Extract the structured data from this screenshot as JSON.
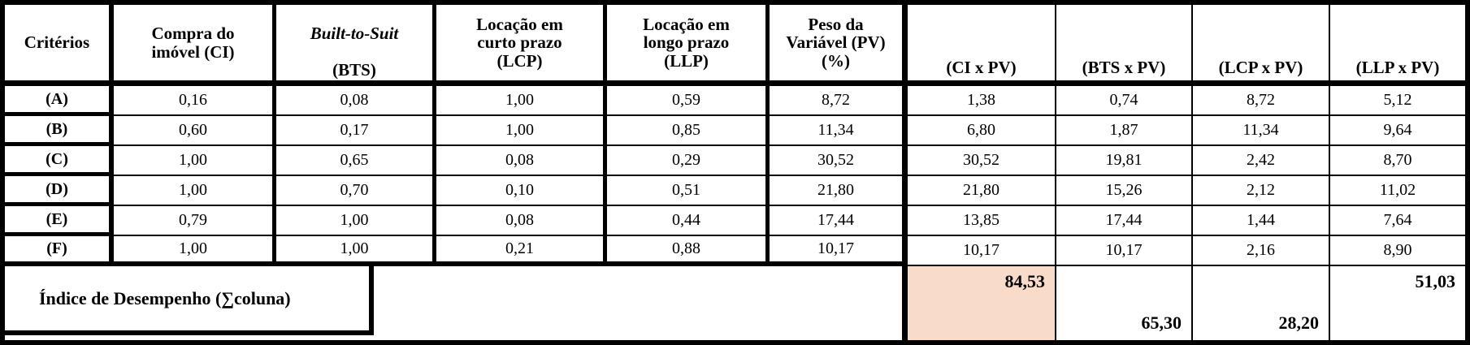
{
  "colors": {
    "highlight": "#F8DBC8",
    "border": "#000000",
    "background": "#FFFFFF"
  },
  "header_display": {
    "criterios": "Critérios",
    "ci": "Compra do\nimóvel (CI)",
    "bts_italic": "Built-to-Suit",
    "bts_rest": "(BTS)",
    "lcp": "Locação em\ncurto prazo\n(LCP)",
    "llp": "Locação em\nlongo prazo\n(LLP)",
    "pv": "Peso da\nVariável (PV)\n(%)",
    "ci_pv": "(CI x PV)",
    "bts_pv": "(BTS x PV)",
    "lcp_pv": "(LCP x PV)",
    "llp_pv": "(LLP x PV)"
  },
  "chart_data": {
    "type": "table",
    "columns": [
      "Critérios",
      "Compra do imóvel (CI)",
      "Built-to-Suit (BTS)",
      "Locação em curto prazo (LCP)",
      "Locação em longo prazo (LLP)",
      "Peso da Variável (PV) (%)",
      "(CI x PV)",
      "(BTS x PV)",
      "(LCP x PV)",
      "(LLP x PV)"
    ],
    "rows": [
      [
        "(A)",
        "0,16",
        "0,08",
        "1,00",
        "0,59",
        "8,72",
        "1,38",
        "0,74",
        "8,72",
        "5,12"
      ],
      [
        "(B)",
        "0,60",
        "0,17",
        "1,00",
        "0,85",
        "11,34",
        "6,80",
        "1,87",
        "11,34",
        "9,64"
      ],
      [
        "(C)",
        "1,00",
        "0,65",
        "0,08",
        "0,29",
        "30,52",
        "30,52",
        "19,81",
        "2,42",
        "8,70"
      ],
      [
        "(D)",
        "1,00",
        "0,70",
        "0,10",
        "0,51",
        "21,80",
        "21,80",
        "15,26",
        "2,12",
        "11,02"
      ],
      [
        "(E)",
        "0,79",
        "1,00",
        "0,08",
        "0,44",
        "17,44",
        "13,85",
        "17,44",
        "1,44",
        "7,64"
      ],
      [
        "(F)",
        "1,00",
        "1,00",
        "0,21",
        "0,88",
        "10,17",
        "10,17",
        "10,17",
        "2,16",
        "8,90"
      ]
    ],
    "footer": {
      "label": "Índice de Desempenho (∑coluna)",
      "values": [
        "84,53",
        "65,30",
        "28,20",
        "51,03"
      ],
      "highlighted_value": "84,53",
      "highlight_color": "#F8DBC8"
    }
  }
}
